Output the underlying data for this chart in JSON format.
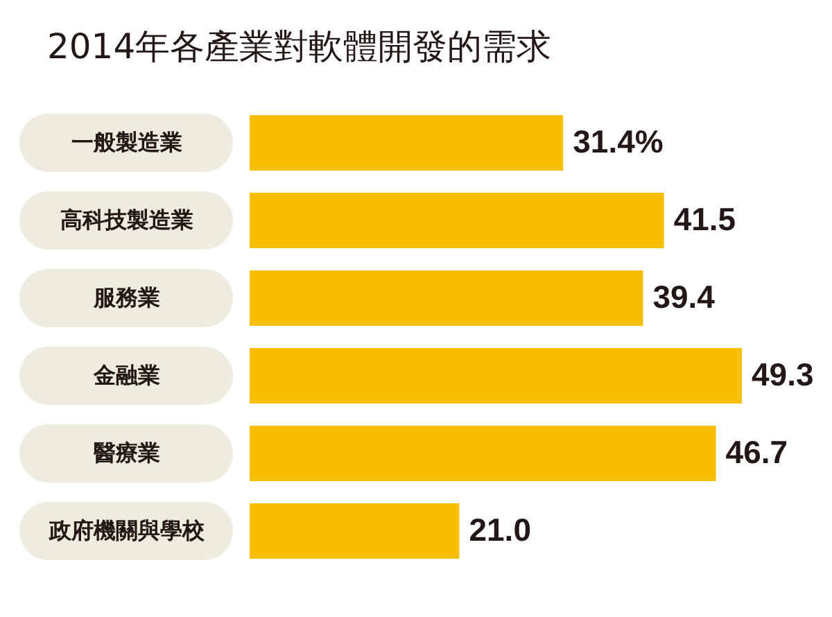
{
  "chart_data": {
    "type": "bar",
    "orientation": "horizontal",
    "title": "2014年各產業對軟體開發的需求",
    "categories": [
      "一般製造業",
      "高科技製造業",
      "服務業",
      "金融業",
      "醫療業",
      "政府機關與學校"
    ],
    "values": [
      31.4,
      41.5,
      39.4,
      49.3,
      46.7,
      21.0
    ],
    "value_labels": [
      "31.4%",
      "41.5",
      "39.4",
      "49.3",
      "46.7",
      "21.0"
    ],
    "color": "#f7be00"
  }
}
